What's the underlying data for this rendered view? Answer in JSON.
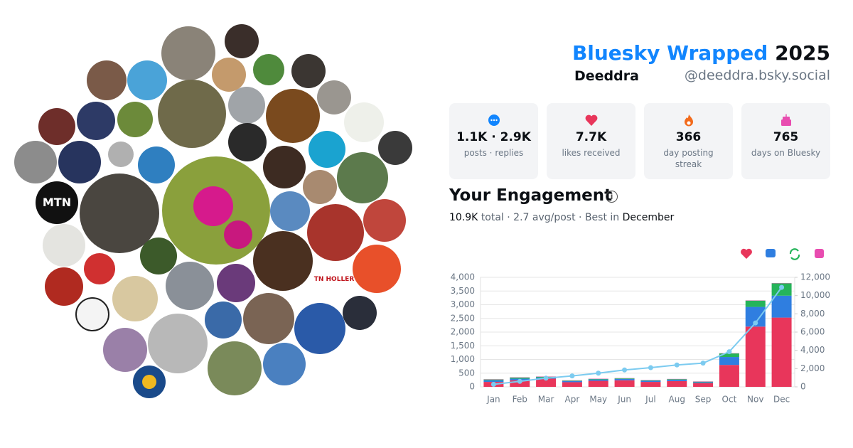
{
  "header": {
    "title": "Bluesky Wrapped",
    "year": "2025",
    "name": "Deeddra",
    "handle": "@deeddra.bsky.social"
  },
  "stats": [
    {
      "value": "1.1K · 2.9K",
      "label": "posts · replies"
    },
    {
      "value": "7.7K",
      "label": "likes received"
    },
    {
      "value": "366",
      "label": "day posting streak"
    },
    {
      "value": "765",
      "label": "days on Bluesky"
    }
  ],
  "engagement": {
    "heading": "Your Engagement",
    "total": "10.9K",
    "summary": "total · 2.7 avg/post · Best in",
    "best": "December"
  },
  "avatar_texts": [
    "MTN",
    "TN HOLLER"
  ],
  "chart_data": {
    "type": "bar",
    "categories": [
      "Jan",
      "Feb",
      "Mar",
      "Apr",
      "May",
      "Jun",
      "Jul",
      "Aug",
      "Sep",
      "Oct",
      "Nov",
      "Dec"
    ],
    "ylim": [
      0,
      4000
    ],
    "yticks": [
      0,
      500,
      {
        "value": 1000,
        "label": "1,000"
      },
      {
        "value": 1500,
        "label": "1,500"
      },
      {
        "value": 2000,
        "label": "2,000"
      },
      {
        "value": 2500,
        "label": "2,500"
      },
      {
        "value": 3000,
        "label": "3,000"
      },
      {
        "value": 3500,
        "label": "3,500"
      },
      {
        "value": 4000,
        "label": "4,000"
      }
    ],
    "y2lim": [
      0,
      12000
    ],
    "y2ticks": [
      0,
      {
        "value": 2000,
        "label": "2,000"
      },
      {
        "value": 4000,
        "label": "4,000"
      },
      {
        "value": 6000,
        "label": "6,000"
      },
      {
        "value": 8000,
        "label": "8,000"
      },
      {
        "value": 10000,
        "label": "10,000"
      },
      {
        "value": 12000,
        "label": "12,000"
      }
    ],
    "grid": true,
    "series": [
      {
        "color": "#e8365b",
        "values": [
          180,
          240,
          300,
          170,
          220,
          240,
          180,
          210,
          140,
          800,
          2200,
          2530
        ]
      },
      {
        "color": "#2f7ee0",
        "values": [
          60,
          60,
          40,
          40,
          50,
          50,
          40,
          50,
          30,
          290,
          720,
          800
        ]
      },
      {
        "color": "#25b45a",
        "values": [
          30,
          40,
          30,
          20,
          20,
          20,
          20,
          20,
          20,
          130,
          230,
          450
        ]
      },
      {
        "color": "#e84cb0",
        "values": [
          10,
          10,
          10,
          10,
          10,
          10,
          10,
          10,
          10,
          10,
          10,
          10
        ]
      },
      {
        "type": "line",
        "axis": "y2",
        "color": "#7ccbf0",
        "values": [
          270,
          600,
          950,
          1200,
          1500,
          1850,
          2100,
          2400,
          2600,
          3850,
          7000,
          10900
        ]
      }
    ]
  }
}
